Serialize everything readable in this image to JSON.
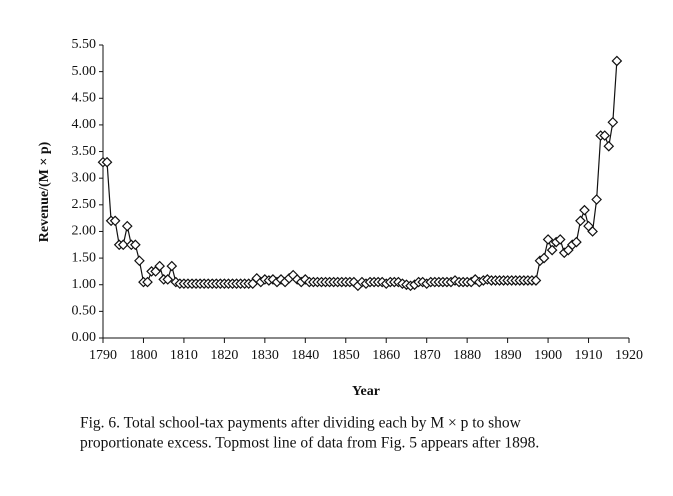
{
  "chart_data": {
    "type": "line",
    "ylabel": "Revenue/(M × p)",
    "xlabel": "Year",
    "caption": [
      "Fig. 6.  Total school-tax payments after dividing each by  M × p to show",
      "proportionate excess. Topmost line of data from Fig. 5 appears after 1898."
    ],
    "xlim": [
      1790,
      1920
    ],
    "xticks": [
      1790,
      1800,
      1810,
      1820,
      1830,
      1840,
      1850,
      1860,
      1870,
      1880,
      1890,
      1900,
      1910,
      1920
    ],
    "ylim": [
      0,
      5.5
    ],
    "yticks": [
      {
        "value": 0,
        "label": "0.00"
      },
      {
        "value": 0.5,
        "label": "0.50"
      },
      {
        "value": 1,
        "label": "1.00"
      },
      {
        "value": 1.5,
        "label": "1.50"
      },
      {
        "value": 2,
        "label": "2.00"
      },
      {
        "value": 2.5,
        "label": "2.50"
      },
      {
        "value": 3,
        "label": "3.00"
      },
      {
        "value": 3.5,
        "label": "3.50"
      },
      {
        "value": 4,
        "label": "4.00"
      },
      {
        "value": 4.5,
        "label": "4.50"
      },
      {
        "value": 5,
        "label": "5.00"
      },
      {
        "value": 5.5,
        "label": "5.50"
      }
    ],
    "color": "#111111",
    "marker": "diamond",
    "grid": false,
    "x": [
      1790,
      1791,
      1792,
      1793,
      1794,
      1795,
      1796,
      1797,
      1798,
      1799,
      1800,
      1801,
      1802,
      1803,
      1804,
      1805,
      1806,
      1807,
      1808,
      1809,
      1810,
      1811,
      1812,
      1813,
      1814,
      1815,
      1816,
      1817,
      1818,
      1819,
      1820,
      1821,
      1822,
      1823,
      1824,
      1825,
      1826,
      1827,
      1828,
      1829,
      1830,
      1831,
      1832,
      1833,
      1834,
      1835,
      1836,
      1837,
      1838,
      1839,
      1840,
      1841,
      1842,
      1843,
      1844,
      1845,
      1846,
      1847,
      1848,
      1849,
      1850,
      1851,
      1852,
      1853,
      1854,
      1855,
      1856,
      1857,
      1858,
      1859,
      1860,
      1861,
      1862,
      1863,
      1864,
      1865,
      1866,
      1867,
      1868,
      1869,
      1870,
      1871,
      1872,
      1873,
      1874,
      1875,
      1876,
      1877,
      1878,
      1879,
      1880,
      1881,
      1882,
      1883,
      1884,
      1885,
      1886,
      1887,
      1888,
      1889,
      1890,
      1891,
      1892,
      1893,
      1894,
      1895,
      1896,
      1897,
      1898,
      1899,
      1900,
      1901,
      1902,
      1903,
      1904,
      1905,
      1906,
      1907,
      1908,
      1909,
      1910,
      1911,
      1912,
      1913,
      1914,
      1915,
      1916,
      1917
    ],
    "values": [
      3.3,
      3.3,
      2.2,
      2.2,
      1.75,
      1.75,
      2.1,
      1.75,
      1.75,
      1.45,
      1.05,
      1.05,
      1.25,
      1.25,
      1.35,
      1.1,
      1.1,
      1.35,
      1.05,
      1.02,
      1.02,
      1.02,
      1.02,
      1.02,
      1.02,
      1.02,
      1.02,
      1.02,
      1.02,
      1.02,
      1.02,
      1.02,
      1.02,
      1.02,
      1.02,
      1.02,
      1.02,
      1.02,
      1.12,
      1.05,
      1.1,
      1.08,
      1.1,
      1.05,
      1.1,
      1.05,
      1.12,
      1.18,
      1.1,
      1.05,
      1.1,
      1.05,
      1.05,
      1.05,
      1.05,
      1.05,
      1.05,
      1.05,
      1.05,
      1.05,
      1.05,
      1.05,
      1.05,
      0.98,
      1.05,
      1.02,
      1.05,
      1.05,
      1.05,
      1.05,
      1.02,
      1.05,
      1.05,
      1.05,
      1.02,
      1.0,
      0.98,
      1.0,
      1.05,
      1.05,
      1.02,
      1.05,
      1.05,
      1.05,
      1.05,
      1.05,
      1.05,
      1.08,
      1.05,
      1.05,
      1.05,
      1.05,
      1.1,
      1.05,
      1.08,
      1.1,
      1.08,
      1.08,
      1.08,
      1.08,
      1.08,
      1.08,
      1.08,
      1.08,
      1.08,
      1.08,
      1.08,
      1.08,
      1.45,
      1.5,
      1.85,
      1.65,
      1.8,
      1.85,
      1.6,
      1.65,
      1.75,
      1.8,
      2.2,
      2.4,
      2.1,
      2.0,
      2.6,
      3.8,
      3.8,
      3.6,
      4.05,
      5.2
    ]
  }
}
